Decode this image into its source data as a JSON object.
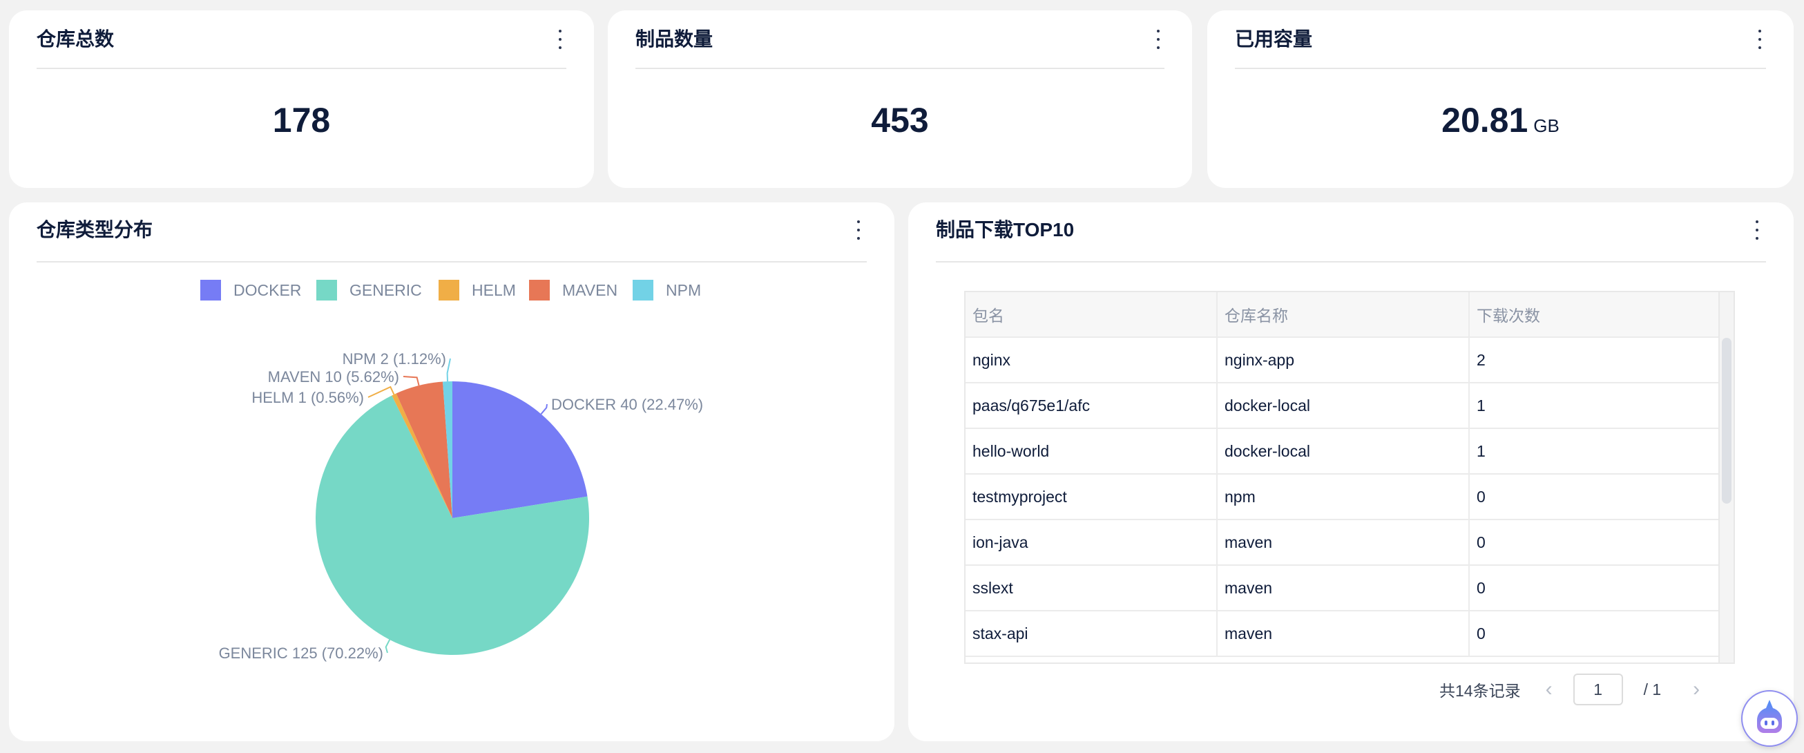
{
  "stats": [
    {
      "title": "仓库总数",
      "value": "178",
      "unit": ""
    },
    {
      "title": "制品数量",
      "value": "453",
      "unit": ""
    },
    {
      "title": "已用容量",
      "value": "20.81",
      "unit": "GB"
    }
  ],
  "pie_card": {
    "title": "仓库类型分布"
  },
  "table_card": {
    "title": "制品下载TOP10",
    "columns": [
      "包名",
      "仓库名称",
      "下载次数"
    ],
    "rows": [
      [
        "nginx",
        "nginx-app",
        "2"
      ],
      [
        "paas/q675e1/afc",
        "docker-local",
        "1"
      ],
      [
        "hello-world",
        "docker-local",
        "1"
      ],
      [
        "testmyproject",
        "npm",
        "0"
      ],
      [
        "ion-java",
        "maven",
        "0"
      ],
      [
        "sslext",
        "maven",
        "0"
      ],
      [
        "stax-api",
        "maven",
        "0"
      ]
    ],
    "pagination": {
      "total_text": "共14条记录",
      "current_page": "1",
      "total_pages": "/ 1"
    }
  },
  "chart_data": {
    "type": "pie",
    "categories": [
      "DOCKER",
      "GENERIC",
      "HELM",
      "MAVEN",
      "NPM"
    ],
    "values": [
      40,
      125,
      1,
      10,
      2
    ],
    "percents": [
      "22.47%",
      "70.22%",
      "0.56%",
      "5.62%",
      "1.12%"
    ],
    "labels": [
      "DOCKER 40 (22.47%)",
      "GENERIC 125 (70.22%)",
      "HELM 1 (0.56%)",
      "MAVEN 10 (5.62%)",
      "NPM 2 (1.12%)"
    ],
    "colors": [
      "#767cf5",
      "#76d8c6",
      "#f0ae46",
      "#e77756",
      "#72d2e6"
    ],
    "legend_position": "top"
  },
  "icons": {
    "more": "more-vertical-icon",
    "prev": "chevron-left-icon",
    "next": "chevron-right-icon",
    "assistant": "robot-assistant-icon"
  }
}
